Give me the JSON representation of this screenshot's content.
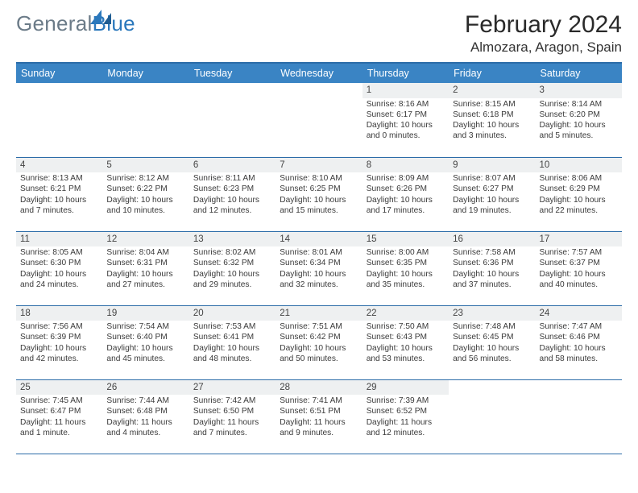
{
  "logo": {
    "part1": "General",
    "part2": "Blue"
  },
  "title": "February 2024",
  "location": "Almozara, Aragon, Spain",
  "weekdays": [
    "Sunday",
    "Monday",
    "Tuesday",
    "Wednesday",
    "Thursday",
    "Friday",
    "Saturday"
  ],
  "colors": {
    "header_blue": "#3a84c4",
    "divider_blue": "#2c6ca8",
    "day_bg": "#eef0f1",
    "logo_gray": "#6b7b88",
    "logo_blue": "#2b78bc"
  },
  "weeks": [
    [
      null,
      null,
      null,
      null,
      {
        "n": "1",
        "sr": "8:16 AM",
        "ss": "6:17 PM",
        "dl1": "Daylight: 10 hours",
        "dl2": "and 0 minutes."
      },
      {
        "n": "2",
        "sr": "8:15 AM",
        "ss": "6:18 PM",
        "dl1": "Daylight: 10 hours",
        "dl2": "and 3 minutes."
      },
      {
        "n": "3",
        "sr": "8:14 AM",
        "ss": "6:20 PM",
        "dl1": "Daylight: 10 hours",
        "dl2": "and 5 minutes."
      }
    ],
    [
      {
        "n": "4",
        "sr": "8:13 AM",
        "ss": "6:21 PM",
        "dl1": "Daylight: 10 hours",
        "dl2": "and 7 minutes."
      },
      {
        "n": "5",
        "sr": "8:12 AM",
        "ss": "6:22 PM",
        "dl1": "Daylight: 10 hours",
        "dl2": "and 10 minutes."
      },
      {
        "n": "6",
        "sr": "8:11 AM",
        "ss": "6:23 PM",
        "dl1": "Daylight: 10 hours",
        "dl2": "and 12 minutes."
      },
      {
        "n": "7",
        "sr": "8:10 AM",
        "ss": "6:25 PM",
        "dl1": "Daylight: 10 hours",
        "dl2": "and 15 minutes."
      },
      {
        "n": "8",
        "sr": "8:09 AM",
        "ss": "6:26 PM",
        "dl1": "Daylight: 10 hours",
        "dl2": "and 17 minutes."
      },
      {
        "n": "9",
        "sr": "8:07 AM",
        "ss": "6:27 PM",
        "dl1": "Daylight: 10 hours",
        "dl2": "and 19 minutes."
      },
      {
        "n": "10",
        "sr": "8:06 AM",
        "ss": "6:29 PM",
        "dl1": "Daylight: 10 hours",
        "dl2": "and 22 minutes."
      }
    ],
    [
      {
        "n": "11",
        "sr": "8:05 AM",
        "ss": "6:30 PM",
        "dl1": "Daylight: 10 hours",
        "dl2": "and 24 minutes."
      },
      {
        "n": "12",
        "sr": "8:04 AM",
        "ss": "6:31 PM",
        "dl1": "Daylight: 10 hours",
        "dl2": "and 27 minutes."
      },
      {
        "n": "13",
        "sr": "8:02 AM",
        "ss": "6:32 PM",
        "dl1": "Daylight: 10 hours",
        "dl2": "and 29 minutes."
      },
      {
        "n": "14",
        "sr": "8:01 AM",
        "ss": "6:34 PM",
        "dl1": "Daylight: 10 hours",
        "dl2": "and 32 minutes."
      },
      {
        "n": "15",
        "sr": "8:00 AM",
        "ss": "6:35 PM",
        "dl1": "Daylight: 10 hours",
        "dl2": "and 35 minutes."
      },
      {
        "n": "16",
        "sr": "7:58 AM",
        "ss": "6:36 PM",
        "dl1": "Daylight: 10 hours",
        "dl2": "and 37 minutes."
      },
      {
        "n": "17",
        "sr": "7:57 AM",
        "ss": "6:37 PM",
        "dl1": "Daylight: 10 hours",
        "dl2": "and 40 minutes."
      }
    ],
    [
      {
        "n": "18",
        "sr": "7:56 AM",
        "ss": "6:39 PM",
        "dl1": "Daylight: 10 hours",
        "dl2": "and 42 minutes."
      },
      {
        "n": "19",
        "sr": "7:54 AM",
        "ss": "6:40 PM",
        "dl1": "Daylight: 10 hours",
        "dl2": "and 45 minutes."
      },
      {
        "n": "20",
        "sr": "7:53 AM",
        "ss": "6:41 PM",
        "dl1": "Daylight: 10 hours",
        "dl2": "and 48 minutes."
      },
      {
        "n": "21",
        "sr": "7:51 AM",
        "ss": "6:42 PM",
        "dl1": "Daylight: 10 hours",
        "dl2": "and 50 minutes."
      },
      {
        "n": "22",
        "sr": "7:50 AM",
        "ss": "6:43 PM",
        "dl1": "Daylight: 10 hours",
        "dl2": "and 53 minutes."
      },
      {
        "n": "23",
        "sr": "7:48 AM",
        "ss": "6:45 PM",
        "dl1": "Daylight: 10 hours",
        "dl2": "and 56 minutes."
      },
      {
        "n": "24",
        "sr": "7:47 AM",
        "ss": "6:46 PM",
        "dl1": "Daylight: 10 hours",
        "dl2": "and 58 minutes."
      }
    ],
    [
      {
        "n": "25",
        "sr": "7:45 AM",
        "ss": "6:47 PM",
        "dl1": "Daylight: 11 hours",
        "dl2": "and 1 minute."
      },
      {
        "n": "26",
        "sr": "7:44 AM",
        "ss": "6:48 PM",
        "dl1": "Daylight: 11 hours",
        "dl2": "and 4 minutes."
      },
      {
        "n": "27",
        "sr": "7:42 AM",
        "ss": "6:50 PM",
        "dl1": "Daylight: 11 hours",
        "dl2": "and 7 minutes."
      },
      {
        "n": "28",
        "sr": "7:41 AM",
        "ss": "6:51 PM",
        "dl1": "Daylight: 11 hours",
        "dl2": "and 9 minutes."
      },
      {
        "n": "29",
        "sr": "7:39 AM",
        "ss": "6:52 PM",
        "dl1": "Daylight: 11 hours",
        "dl2": "and 12 minutes."
      },
      null,
      null
    ]
  ]
}
